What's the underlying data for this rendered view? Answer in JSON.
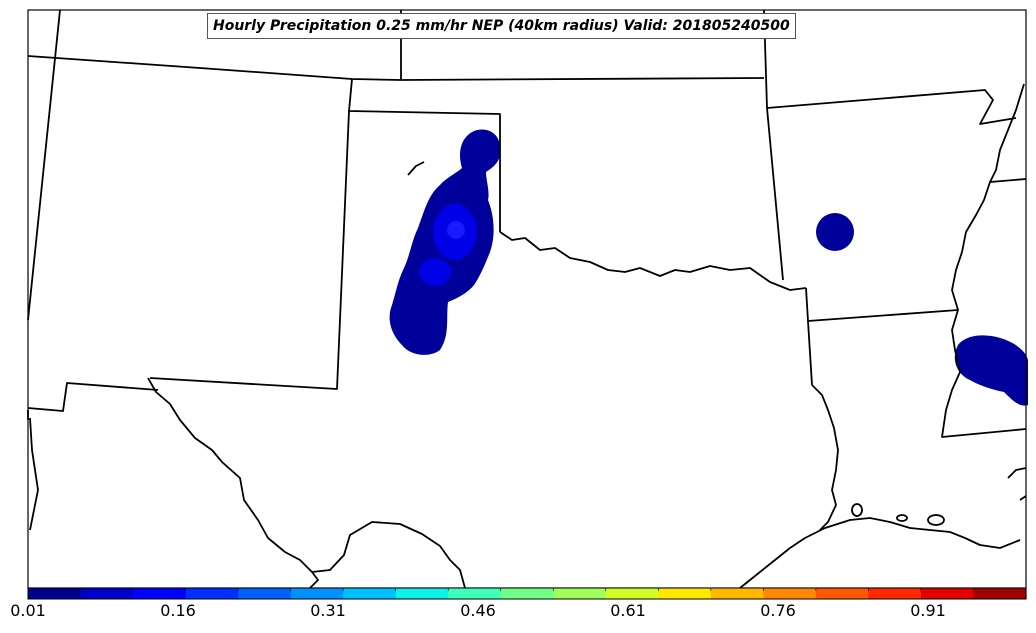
{
  "title": "Hourly Precipitation 0.25 mm/hr NEP (40km radius) Valid: 201805240500",
  "colorbar": {
    "ticks": [
      "0.01",
      "0.16",
      "0.31",
      "0.46",
      "0.61",
      "0.76",
      "0.91"
    ],
    "colors": [
      "#00008f",
      "#0000c8",
      "#0000ff",
      "#0030ff",
      "#0060ff",
      "#0090ff",
      "#00c0ff",
      "#10f0e8",
      "#40ffb8",
      "#70ff88",
      "#a0ff58",
      "#d0ff28",
      "#ffe800",
      "#ffb800",
      "#ff8800",
      "#ff5800",
      "#ff2800",
      "#e00000",
      "#a00000"
    ]
  },
  "colors": {
    "nep_low": "#00009a",
    "nep_mid": "#0000e6",
    "nep_high": "#1a1aff",
    "boundary": "#000000"
  }
}
